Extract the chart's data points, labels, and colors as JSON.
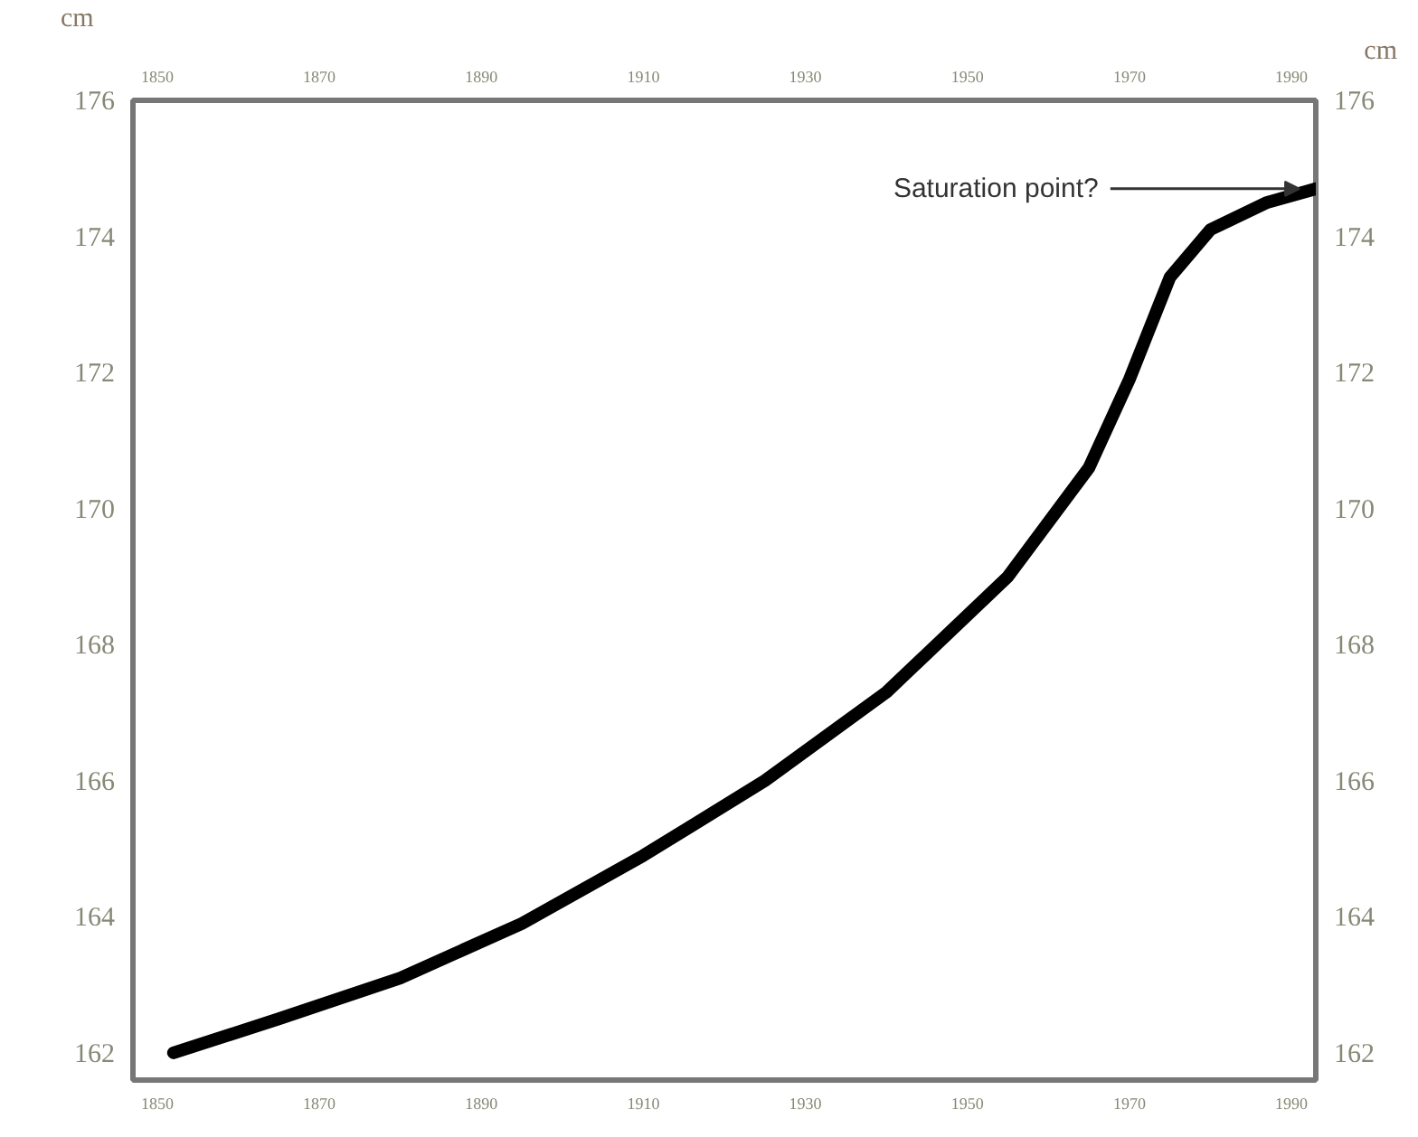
{
  "chart_data": {
    "type": "line",
    "ylabel": "cm",
    "y2label": "cm",
    "x": [
      1852,
      1865,
      1880,
      1895,
      1910,
      1925,
      1940,
      1955,
      1965,
      1970,
      1975,
      1980,
      1987,
      1993
    ],
    "series": [
      {
        "color": "#000000",
        "values": [
          162.0,
          162.5,
          163.1,
          163.9,
          164.9,
          166.0,
          167.3,
          169.0,
          170.6,
          171.9,
          173.4,
          174.1,
          174.5,
          174.7
        ]
      }
    ],
    "xlim": [
      1847,
      1993
    ],
    "xticks": [
      1850,
      1870,
      1890,
      1910,
      1930,
      1950,
      1970,
      1990
    ],
    "x2lim": [
      1847,
      1993
    ],
    "x2ticks": [
      1850,
      1870,
      1890,
      1910,
      1930,
      1950,
      1970,
      1990
    ],
    "ylim": [
      161.6,
      176
    ],
    "yticks": [
      162,
      164,
      166,
      168,
      170,
      172,
      174,
      176
    ],
    "y2lim": [
      161.6,
      176
    ],
    "y2ticks": [
      162,
      164,
      166,
      168,
      170,
      172,
      174,
      176
    ],
    "annotations": [
      {
        "text": "Saturation point?",
        "x": 1991,
        "y": 174.7
      }
    ],
    "grid": false,
    "marker": "none",
    "line_style": "solid"
  }
}
